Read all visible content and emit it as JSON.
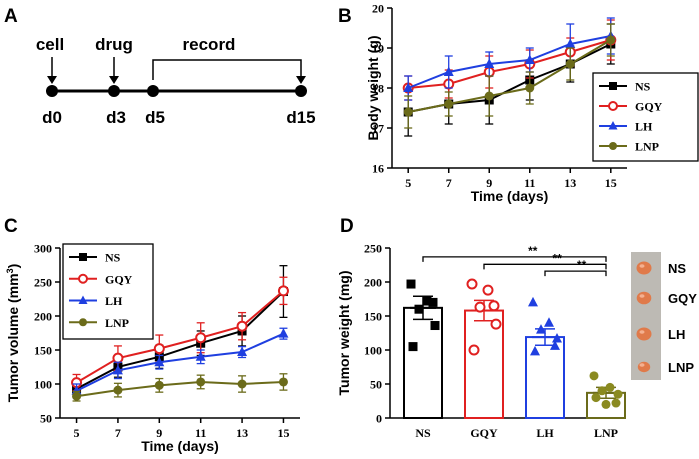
{
  "panels": {
    "A": {
      "letter": "A",
      "labels": {
        "cell": "cell",
        "drug": "drug",
        "record": "record"
      },
      "days": [
        "d0",
        "d3",
        "d5",
        "d15"
      ]
    },
    "B": {
      "letter": "B"
    },
    "C": {
      "letter": "C"
    },
    "D": {
      "letter": "D"
    }
  },
  "colors": {
    "NS": "#000000",
    "GQY": "#e02020",
    "LH": "#1f3fe0",
    "LNP": "#6b6b1a"
  },
  "chart_data": [
    {
      "id": "B",
      "type": "line",
      "title": "",
      "xlabel": "Time (days)",
      "ylabel": "Body weight (g)",
      "x": [
        5,
        7,
        9,
        11,
        13,
        15
      ],
      "xticks": [
        "5",
        "7",
        "9",
        "11",
        "13",
        "15"
      ],
      "yticks": [
        "16",
        "17",
        "18",
        "19",
        "20"
      ],
      "xlim": [
        4.2,
        15.8
      ],
      "ylim": [
        16,
        20
      ],
      "legend": "bottom-right",
      "series": [
        {
          "name": "NS",
          "marker": "square",
          "values": [
            17.4,
            17.6,
            17.7,
            18.2,
            18.6,
            19.1
          ],
          "err": [
            0.6,
            0.5,
            0.6,
            0.5,
            0.45,
            0.5
          ]
        },
        {
          "name": "GQY",
          "marker": "circle-open",
          "values": [
            18.0,
            18.1,
            18.4,
            18.6,
            18.9,
            19.2
          ],
          "err": [
            0.3,
            0.35,
            0.4,
            0.35,
            0.35,
            0.5
          ]
        },
        {
          "name": "LH",
          "marker": "triangle",
          "values": [
            18.0,
            18.4,
            18.6,
            18.7,
            19.1,
            19.3
          ],
          "err": [
            0.3,
            0.4,
            0.3,
            0.3,
            0.5,
            0.45
          ]
        },
        {
          "name": "LNP",
          "marker": "circle",
          "values": [
            17.4,
            17.6,
            17.8,
            18.0,
            18.6,
            19.2
          ],
          "err": [
            0.4,
            0.3,
            0.5,
            0.4,
            0.4,
            0.4
          ]
        }
      ]
    },
    {
      "id": "C",
      "type": "line",
      "title": "",
      "xlabel": "Time (days)",
      "ylabel": "Tumor volume (mm",
      "ylabel_sup": "3",
      "ylabel_end": ")",
      "x": [
        5,
        7,
        9,
        11,
        13,
        15
      ],
      "xticks": [
        "5",
        "7",
        "9",
        "11",
        "13",
        "15"
      ],
      "yticks": [
        "50",
        "100",
        "150",
        "200",
        "250",
        "300"
      ],
      "xlim": [
        4.2,
        15.8
      ],
      "ylim": [
        50,
        300
      ],
      "legend": "top-left",
      "series": [
        {
          "name": "NS",
          "marker": "square",
          "values": [
            93,
            125,
            140,
            160,
            178,
            236
          ],
          "err": [
            12,
            15,
            17,
            18,
            22,
            38
          ]
        },
        {
          "name": "GQY",
          "marker": "circle-open",
          "values": [
            102,
            138,
            152,
            168,
            185,
            237
          ],
          "err": [
            12,
            18,
            20,
            22,
            20,
            20
          ]
        },
        {
          "name": "LH",
          "marker": "triangle",
          "values": [
            90,
            120,
            132,
            140,
            147,
            174
          ],
          "err": [
            10,
            12,
            10,
            10,
            8,
            8
          ]
        },
        {
          "name": "LNP",
          "marker": "circle",
          "values": [
            82,
            91,
            98,
            103,
            100,
            103
          ],
          "err": [
            7,
            10,
            10,
            10,
            12,
            12
          ]
        }
      ]
    },
    {
      "id": "D",
      "type": "bar",
      "title": "",
      "xlabel": "",
      "ylabel": "Tumor weight (mg)",
      "categories": [
        "NS",
        "GQY",
        "LH",
        "LNP"
      ],
      "values": [
        162,
        158,
        119,
        37
      ],
      "err": [
        17,
        15,
        12,
        8
      ],
      "points": [
        [
          197,
          172,
          160,
          136,
          105,
          170
        ],
        [
          197,
          188,
          163,
          138,
          100,
          165
        ],
        [
          170,
          140,
          130,
          117,
          98,
          106
        ],
        [
          62,
          45,
          40,
          35,
          30,
          22,
          20
        ]
      ],
      "yticks": [
        "0",
        "50",
        "100",
        "150",
        "200",
        "250"
      ],
      "ylim": [
        0,
        250
      ],
      "significance": [
        "**",
        "**",
        "**"
      ],
      "image_labels": [
        "NS",
        "GQY",
        "LH",
        "LNP"
      ]
    }
  ]
}
